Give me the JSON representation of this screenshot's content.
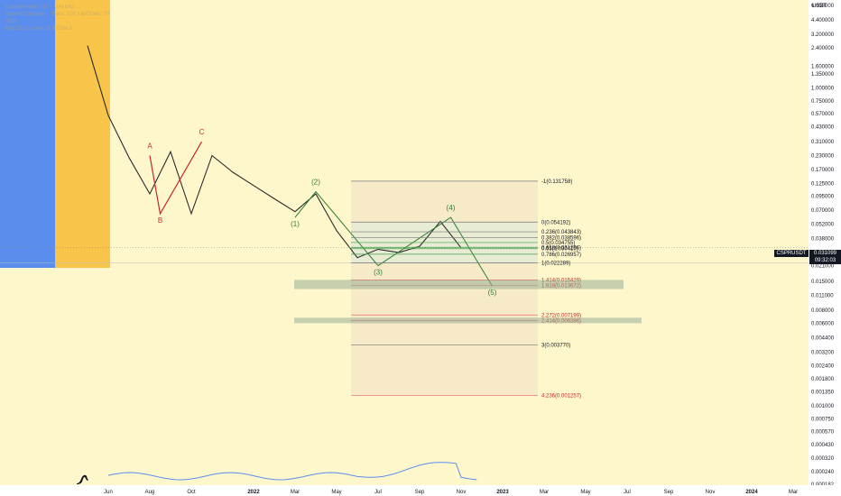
{
  "header": {
    "symbol_line": "CasperToken · 1D · GATEIO",
    "indicator_lines": [
      "Volume Compare · Bars, 120, Up/Down, 70",
      "ADX",
      "MACD 12 close 26 9 EMA 5"
    ]
  },
  "price_axis": {
    "unit": "USDT",
    "labels": [
      "6.000000",
      "4.400000",
      "3.200000",
      "2.400000",
      "1.600000",
      "1.350000",
      "1.000000",
      "0.750000",
      "0.570000",
      "0.430000",
      "0.310000",
      "0.230000",
      "0.170000",
      "0.125000",
      "0.095000",
      "0.070000",
      "0.052000",
      "0.038000",
      "0.028000",
      "0.021000",
      "0.015000",
      "0.011000",
      "0.008000",
      "0.006000",
      "0.004400",
      "0.003200",
      "0.002400",
      "0.001800",
      "0.001350",
      "0.001000",
      "0.000750",
      "0.000570",
      "0.000430",
      "0.000320",
      "0.000240",
      "0.000182"
    ]
  },
  "time_axis": {
    "labels": [
      "Jun",
      "Aug",
      "Oct",
      "2022",
      "Mar",
      "May",
      "Jul",
      "Sep",
      "Nov",
      "2023",
      "Mar",
      "May",
      "Jul",
      "Sep",
      "Nov",
      "2024",
      "Mar"
    ]
  },
  "price_tag": {
    "symbol": "CSPRUSDT",
    "price": "0.031099",
    "countdown": "09:32:03"
  },
  "colors": {
    "up": "#26a69a",
    "down": "#ef5350",
    "wave_red": "#c62828",
    "wave_green": "#2e7d32",
    "volume": "#5b8def",
    "blue_band": "#5b8def",
    "orange_band": "#f9c44a",
    "background": "#fff7cc"
  },
  "chart_data": {
    "type": "line",
    "y_scale": "log",
    "ylim": [
      0.000182,
      6.0
    ],
    "x": [
      "2021-05",
      "2021-06",
      "2021-07",
      "2021-08",
      "2021-09",
      "2021-10",
      "2021-11",
      "2021-12",
      "2022-01",
      "2022-02",
      "2022-03",
      "2022-04",
      "2022-05",
      "2022-06",
      "2022-07",
      "2022-08",
      "2022-09",
      "2022-10",
      "2022-11"
    ],
    "series": [
      {
        "values": [
          2.5,
          0.55,
          0.22,
          0.1,
          0.25,
          0.065,
          0.23,
          0.16,
          0.12,
          0.09,
          0.068,
          0.1,
          0.045,
          0.025,
          0.03,
          0.028,
          0.032,
          0.055,
          0.031
        ]
      }
    ],
    "waves": [
      {
        "label": "A",
        "price": 0.23
      },
      {
        "label": "B",
        "price": 0.065
      },
      {
        "label": "C",
        "price": 0.31
      },
      {
        "label": "(1)",
        "price": 0.06
      },
      {
        "label": "(2)",
        "price": 0.105
      },
      {
        "label": "(3)",
        "price": 0.021
      },
      {
        "label": "(4)",
        "price": 0.06
      },
      {
        "label": "(5)",
        "price": 0.0135
      }
    ],
    "fib_levels": [
      {
        "label": "-1(0.131758)",
        "price": 0.131758
      },
      {
        "label": "0(0.054192)",
        "price": 0.054192
      },
      {
        "label": "0.236(0.043843)",
        "price": 0.043843
      },
      {
        "label": "0.382(0.038596)",
        "price": 0.038596
      },
      {
        "label": "0.5(0.034755)",
        "price": 0.034755
      },
      {
        "label": "0.618(0.031296)",
        "price": 0.031296
      },
      {
        "label": "0.65(0.030410)",
        "price": 0.03041
      },
      {
        "label": "0.786(0.026957)",
        "price": 0.026957
      },
      {
        "label": "1(0.022289)",
        "price": 0.022289
      },
      {
        "label": "1.414(0.015429)",
        "price": 0.015429
      },
      {
        "label": "1.618(0.013672)",
        "price": 0.013672
      },
      {
        "label": "2.272(0.007199)",
        "price": 0.007199
      },
      {
        "label": "2.414(0.006386)",
        "price": 0.006386
      },
      {
        "label": "3(0.003770)",
        "price": 0.00377
      },
      {
        "label": "4.236(0.001257)",
        "price": 0.001257
      }
    ]
  }
}
